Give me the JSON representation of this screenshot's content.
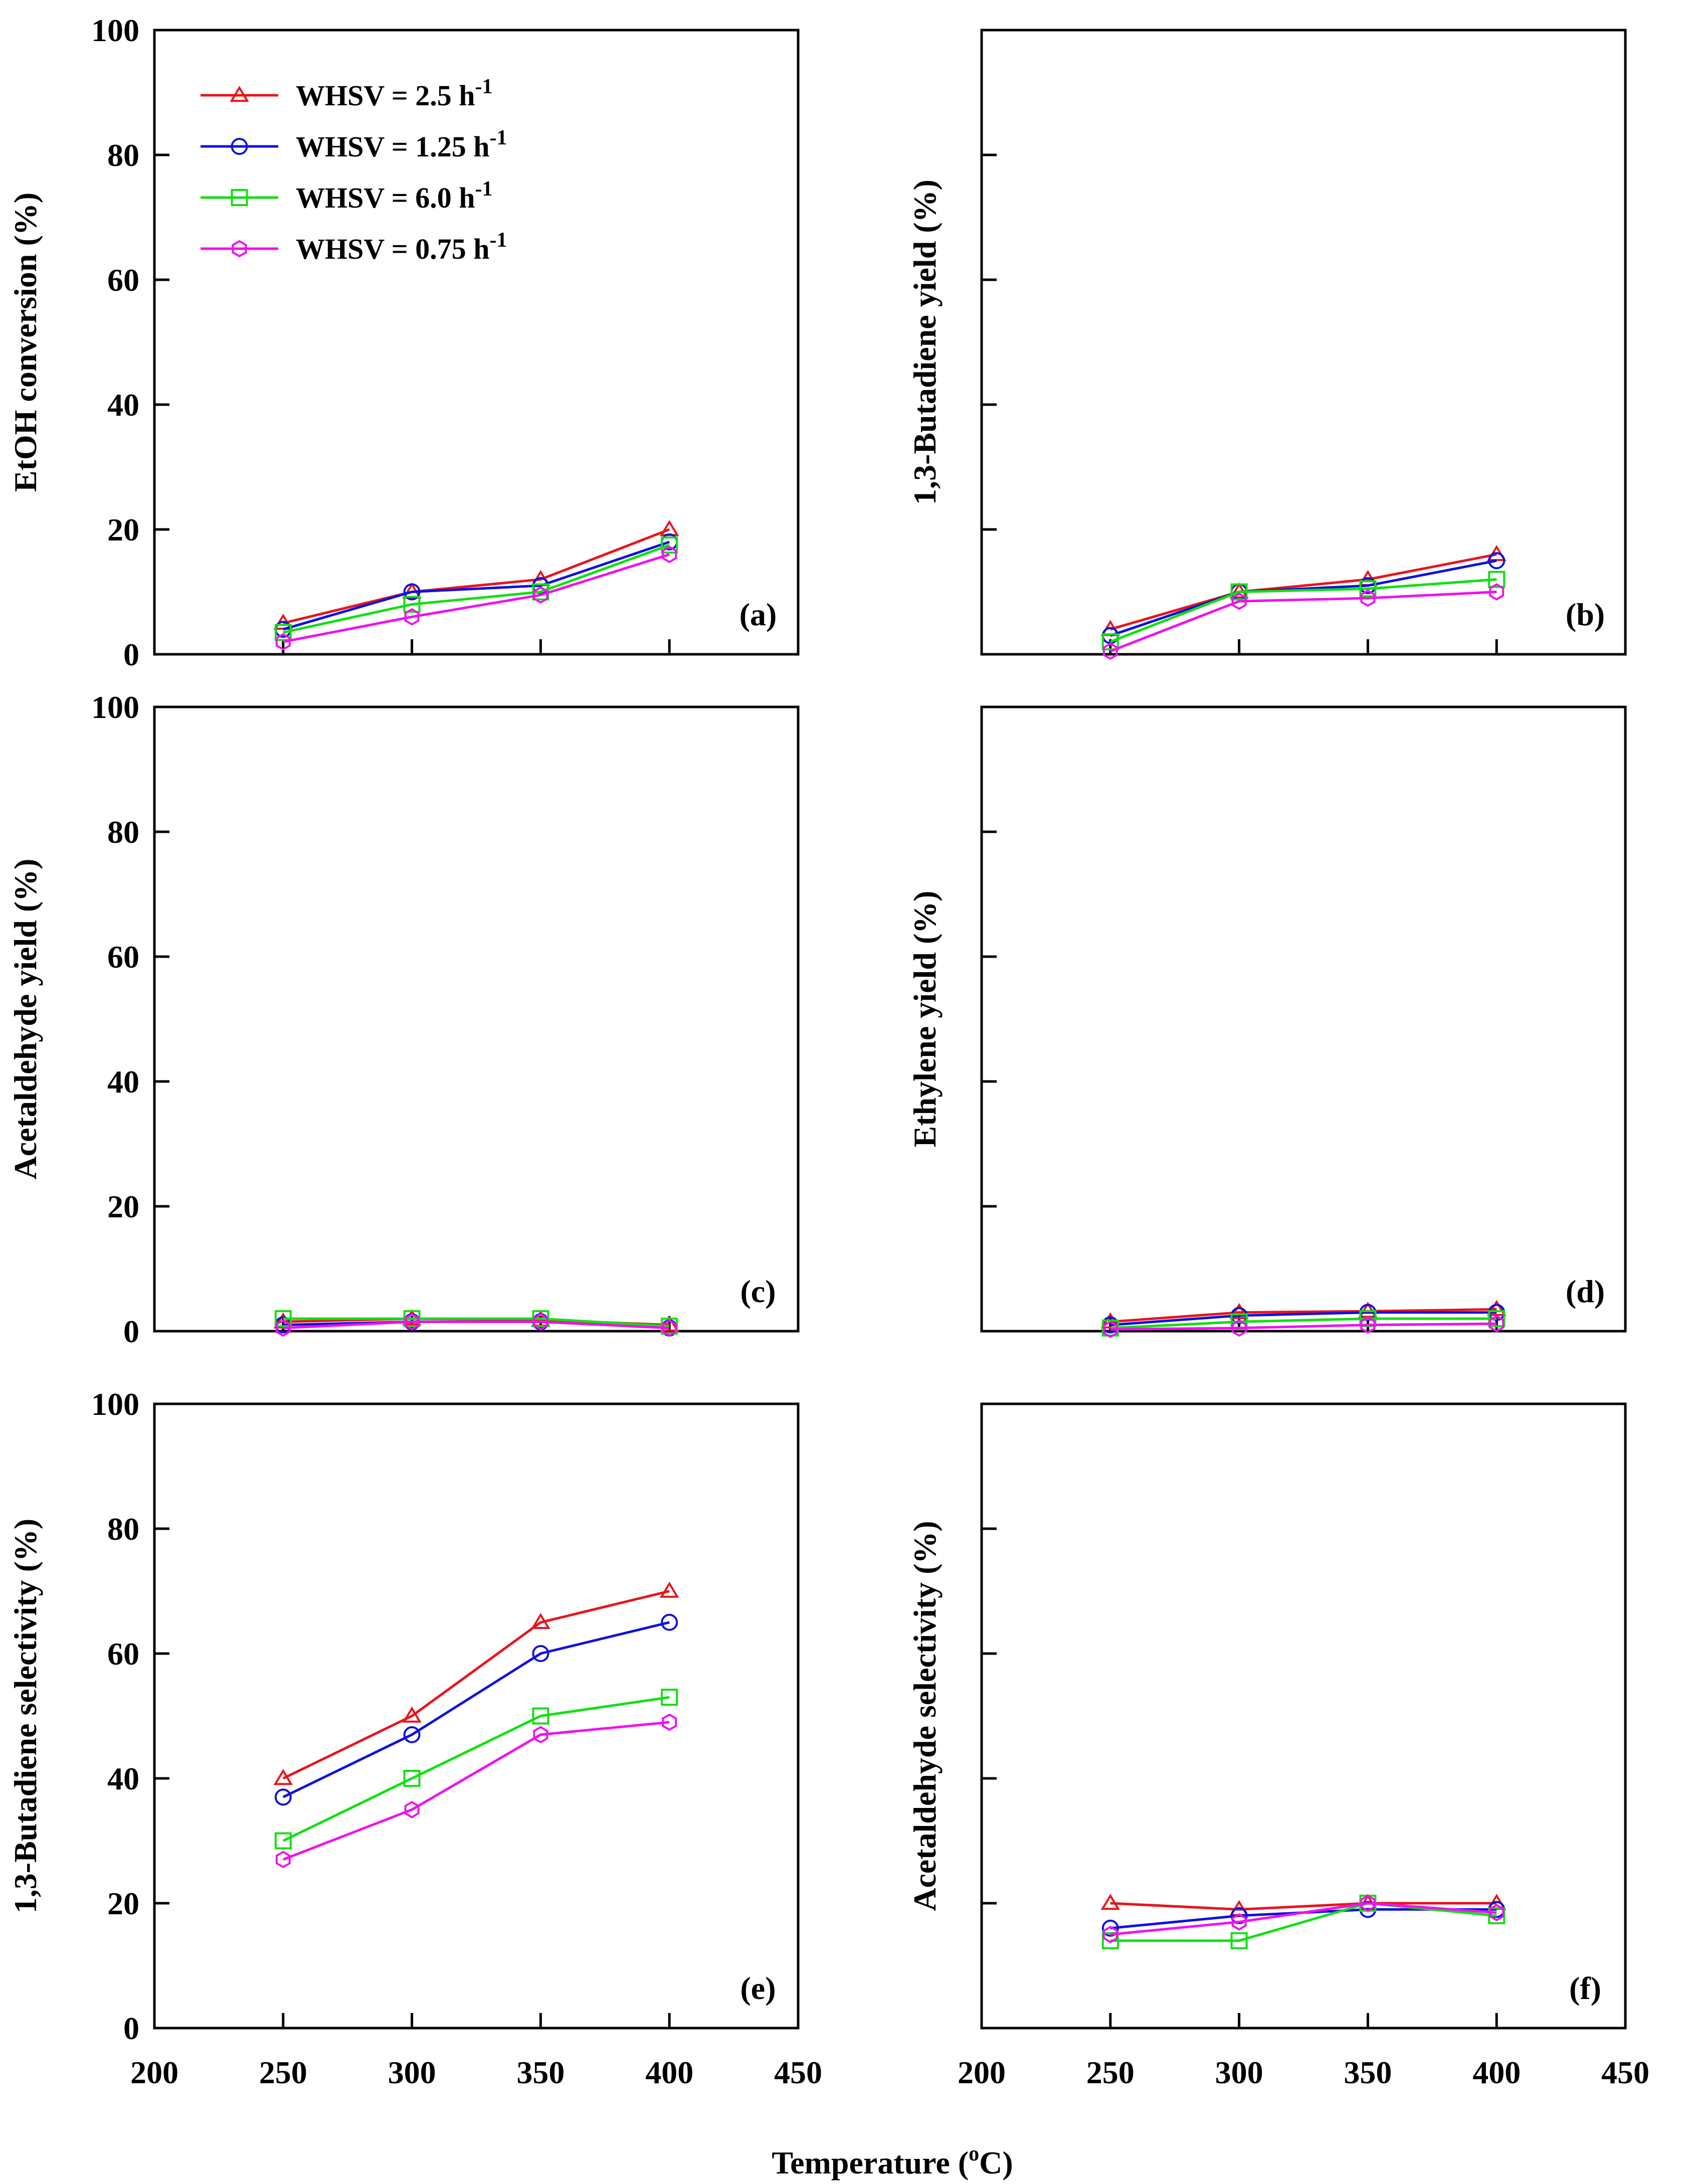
{
  "figure": {
    "xlabel_main": "Temperature (",
    "xlabel_sup": "o",
    "xlabel_tail": "C)"
  },
  "legend": {
    "placement": "top-left of panel (a)",
    "entries": [
      {
        "prefix": "WHSV = 2.5 h",
        "sup": "-1",
        "color": "#e8141b",
        "marker": "triangle"
      },
      {
        "prefix": "WHSV = 1.25 h",
        "sup": "-1",
        "color": "#1010e0",
        "marker": "circle"
      },
      {
        "prefix": "WHSV = 6.0 h",
        "sup": "-1",
        "color": "#10e010",
        "marker": "square"
      },
      {
        "prefix": "WHSV = 0.75 h",
        "sup": "-1",
        "color": "#f010f0",
        "marker": "hexagon"
      }
    ]
  },
  "chart_data": [
    {
      "type": "line",
      "panel": "(a)",
      "title": "",
      "xlabel": "",
      "ylabel": "EtOH conversion (%)",
      "xlim": [
        200,
        450
      ],
      "ylim": [
        0,
        100
      ],
      "yticks": [
        "0",
        "20",
        "40",
        "60",
        "80",
        "100"
      ],
      "xticks": [],
      "x": [
        250,
        300,
        350,
        400
      ],
      "series": [
        {
          "name": "WHSV = 2.5 h-1",
          "values": [
            5,
            10,
            12,
            20
          ]
        },
        {
          "name": "WHSV = 1.25 h-1",
          "values": [
            4,
            10,
            11,
            18
          ]
        },
        {
          "name": "WHSV = 6.0 h-1",
          "values": [
            3.5,
            8,
            10,
            17.5
          ]
        },
        {
          "name": "WHSV = 0.75 h-1",
          "values": [
            2,
            6,
            9.5,
            16
          ]
        }
      ]
    },
    {
      "type": "line",
      "panel": "(b)",
      "title": "",
      "xlabel": "",
      "ylabel": "1,3-Butadiene yield (%)",
      "xlim": [
        200,
        450
      ],
      "ylim": [
        0,
        100
      ],
      "yticks": [],
      "xticks": [],
      "x": [
        250,
        300,
        350,
        400
      ],
      "series": [
        {
          "name": "WHSV = 2.5 h-1",
          "values": [
            4,
            10,
            12,
            16
          ]
        },
        {
          "name": "WHSV = 1.25 h-1",
          "values": [
            3,
            10,
            11,
            15
          ]
        },
        {
          "name": "WHSV = 6.0 h-1",
          "values": [
            2,
            10,
            10.5,
            12
          ]
        },
        {
          "name": "WHSV = 0.75 h-1",
          "values": [
            0.5,
            8.5,
            9,
            10
          ]
        }
      ]
    },
    {
      "type": "line",
      "panel": "(c)",
      "title": "",
      "xlabel": "",
      "ylabel": "Acetaldehyde yield (%)",
      "xlim": [
        200,
        450
      ],
      "ylim": [
        0,
        100
      ],
      "yticks": [
        "0",
        "20",
        "40",
        "60",
        "80",
        "100"
      ],
      "xticks": [],
      "x": [
        250,
        300,
        350,
        400
      ],
      "series": [
        {
          "name": "WHSV = 2.5 h-1",
          "values": [
            1.5,
            2,
            1.8,
            1
          ]
        },
        {
          "name": "WHSV = 1.25 h-1",
          "values": [
            1,
            1.5,
            1.5,
            0.5
          ]
        },
        {
          "name": "WHSV = 6.0 h-1",
          "values": [
            2,
            2,
            2,
            0.8
          ]
        },
        {
          "name": "WHSV = 0.75 h-1",
          "values": [
            0.5,
            1.5,
            1.5,
            0.5
          ]
        }
      ]
    },
    {
      "type": "line",
      "panel": "(d)",
      "title": "",
      "xlabel": "",
      "ylabel": "Ethylene yield (%)",
      "xlim": [
        200,
        450
      ],
      "ylim": [
        0,
        100
      ],
      "yticks": [],
      "xticks": [],
      "x": [
        250,
        300,
        350,
        400
      ],
      "series": [
        {
          "name": "WHSV = 2.5 h-1",
          "values": [
            1.5,
            3,
            3.2,
            3.5
          ]
        },
        {
          "name": "WHSV = 1.25 h-1",
          "values": [
            1,
            2.5,
            3,
            3
          ]
        },
        {
          "name": "WHSV = 6.0 h-1",
          "values": [
            0.5,
            1.5,
            2,
            2
          ]
        },
        {
          "name": "WHSV = 0.75 h-1",
          "values": [
            0.3,
            0.5,
            1,
            1.2
          ]
        }
      ]
    },
    {
      "type": "line",
      "panel": "(e)",
      "title": "",
      "xlabel": "",
      "ylabel": "1,3-Butadiene selectivity (%)",
      "xlim": [
        200,
        450
      ],
      "ylim": [
        0,
        100
      ],
      "yticks": [
        "0",
        "20",
        "40",
        "60",
        "80",
        "100"
      ],
      "xticks": [
        "200",
        "250",
        "300",
        "350",
        "400",
        "450"
      ],
      "x": [
        250,
        300,
        350,
        400
      ],
      "series": [
        {
          "name": "WHSV = 2.5 h-1",
          "values": [
            40,
            50,
            65,
            70
          ]
        },
        {
          "name": "WHSV = 1.25 h-1",
          "values": [
            37,
            47,
            60,
            65
          ]
        },
        {
          "name": "WHSV = 6.0 h-1",
          "values": [
            30,
            40,
            50,
            53
          ]
        },
        {
          "name": "WHSV = 0.75 h-1",
          "values": [
            27,
            35,
            47,
            49
          ]
        }
      ]
    },
    {
      "type": "line",
      "panel": "(f)",
      "title": "",
      "xlabel": "",
      "ylabel": "Acetaldehyde selectivity (%)",
      "xlim": [
        200,
        450
      ],
      "ylim": [
        0,
        100
      ],
      "yticks": [],
      "xticks": [
        "200",
        "250",
        "300",
        "350",
        "400",
        "450"
      ],
      "x": [
        250,
        300,
        350,
        400
      ],
      "series": [
        {
          "name": "WHSV = 2.5 h-1",
          "values": [
            20,
            19,
            20,
            20
          ]
        },
        {
          "name": "WHSV = 1.25 h-1",
          "values": [
            16,
            18,
            19,
            19
          ]
        },
        {
          "name": "WHSV = 6.0 h-1",
          "values": [
            14,
            14,
            20,
            18
          ]
        },
        {
          "name": "WHSV = 0.75 h-1",
          "values": [
            15,
            17,
            20,
            18.5
          ]
        }
      ]
    }
  ]
}
